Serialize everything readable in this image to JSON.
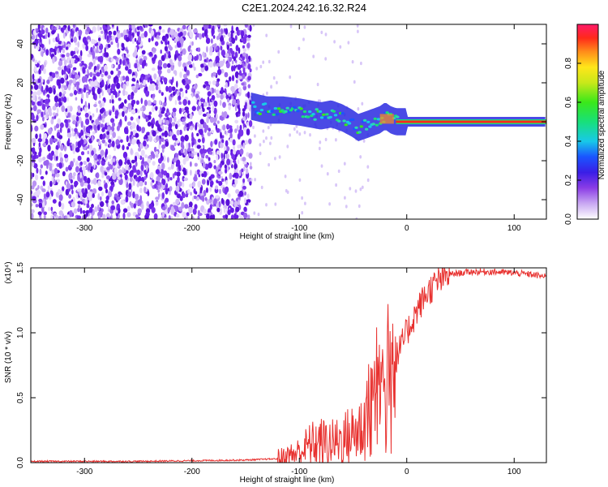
{
  "title": "C2E1.2024.242.16.32.R24",
  "chart_data": [
    {
      "type": "heatmap",
      "xlabel": "Height of straight line (km)",
      "ylabel": "Frequency (Hz)",
      "xlim": [
        -350,
        130
      ],
      "ylim": [
        -50,
        50
      ],
      "xticks": [
        -300,
        -200,
        -100,
        0,
        100
      ],
      "yticks": [
        -40,
        -20,
        0,
        20,
        40
      ],
      "xtick_labels": [
        "-300",
        "-200",
        "-100",
        "0",
        "100"
      ],
      "ytick_labels": [
        "-40",
        "-20",
        "0",
        "20",
        "40"
      ],
      "colorbar": {
        "label": "Normalized spectral amplitude",
        "range": [
          0,
          1
        ],
        "ticks": [
          0,
          0.2,
          0.4,
          0.6,
          0.8
        ],
        "tick_labels": [
          "0.0",
          "0.2",
          "0.4",
          "0.6",
          "0.8"
        ]
      },
      "ridge": {
        "x": [
          -145,
          -130,
          -115,
          -100,
          -90,
          -80,
          -70,
          -60,
          -50,
          -45,
          -40,
          -35,
          -30,
          -25,
          -20,
          -15,
          -10,
          0,
          50,
          130
        ],
        "y": [
          8,
          6,
          6,
          5,
          4,
          3,
          4,
          2,
          -1,
          -3,
          -2,
          -1,
          0,
          1,
          3,
          1,
          0,
          0,
          0,
          0
        ]
      },
      "noise_region_x": [
        -350,
        -145
      ]
    },
    {
      "type": "line",
      "xlabel": "Height of straight line (km)",
      "ylabel": "SNR (10 * v/v)",
      "y_multiplier": "(x10⁴)",
      "xlim": [
        -350,
        130
      ],
      "ylim": [
        0,
        1.5
      ],
      "xticks": [
        -300,
        -200,
        -100,
        0,
        100
      ],
      "yticks": [
        0,
        0.5,
        1.0,
        1.5
      ],
      "xtick_labels": [
        "-300",
        "-200",
        "-100",
        "0",
        "100"
      ],
      "ytick_labels": [
        "0.0",
        "0.5",
        "1.0",
        "1.5"
      ],
      "line_color": "#e8312f",
      "series": [
        {
          "x": [
            -350,
            -250,
            -150,
            -120,
            -110,
            -100,
            -90,
            -80,
            -70,
            -60,
            -50,
            -40,
            -30,
            -25,
            -20,
            -15,
            -10,
            -5,
            0,
            10,
            20,
            30,
            40,
            50,
            60,
            80,
            100,
            115,
            130
          ],
          "y": [
            0.01,
            0.01,
            0.02,
            0.03,
            0.05,
            0.08,
            0.14,
            0.16,
            0.15,
            0.18,
            0.22,
            0.28,
            0.4,
            0.55,
            0.6,
            0.68,
            0.8,
            0.9,
            1.0,
            1.18,
            1.32,
            1.4,
            1.45,
            1.46,
            1.47,
            1.47,
            1.46,
            1.45,
            1.43
          ]
        }
      ]
    }
  ]
}
